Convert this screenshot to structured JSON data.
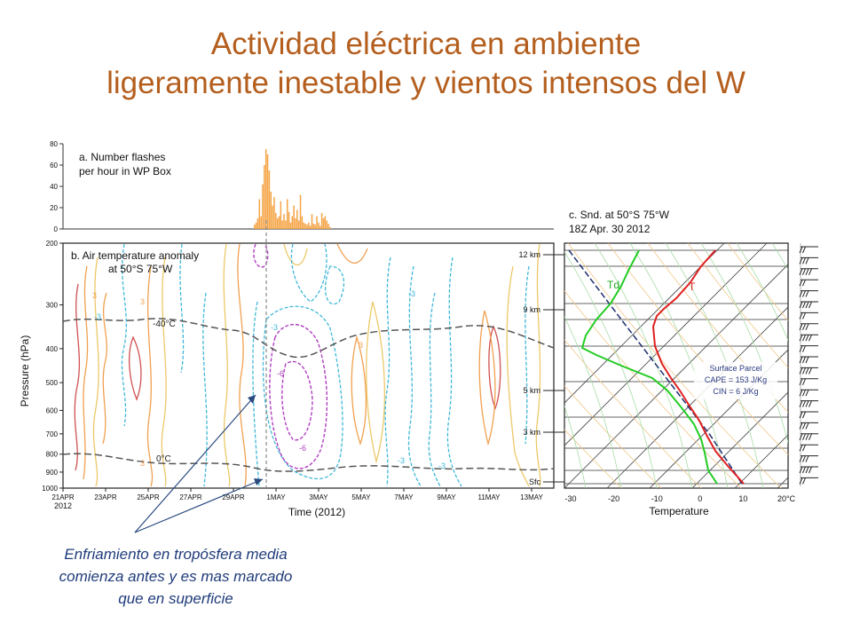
{
  "slide": {
    "title_line1": "Actividad eléctrica en ambiente",
    "title_line2": "ligeramente inestable y vientos intensos del W",
    "annotation_lines": [
      "Enfriamiento en tropósfera media",
      "comienza antes y es mas marcado",
      "que en superficie"
    ]
  },
  "colors": {
    "title": "#b45f1e",
    "annotation": "#1f3b7a",
    "flash_bars": "#f5a445",
    "temperature": "#e02020",
    "dewpoint": "#22cc22"
  },
  "chart_data": [
    {
      "type": "bar",
      "title": "a. Number flashes per hour in WP Box",
      "title_lines": [
        "a. Number flashes",
        "per hour in WP Box"
      ],
      "ylim": [
        0,
        80
      ],
      "yticks": [
        0,
        20,
        40,
        60,
        80
      ],
      "series": [
        {
          "values": [
            4,
            6,
            10,
            28,
            12,
            42,
            60,
            75,
            70,
            55,
            35,
            22,
            30,
            15,
            10,
            12,
            26,
            8,
            14,
            8,
            28,
            16,
            6,
            12,
            22,
            10,
            18,
            8,
            32,
            12,
            6,
            5,
            4,
            6,
            3,
            14,
            5,
            4,
            12,
            6,
            3,
            15,
            10,
            12,
            8,
            5,
            2
          ]
        }
      ],
      "grid": false
    },
    {
      "type": "contour",
      "title": "b. Air temperature anomaly at 50°S 75°W",
      "title_lines": [
        "b. Air temperature anomaly",
        "at 50°S 75°W"
      ],
      "xlabel": "Time (2012)",
      "ylabel": "Pressure (hPa)",
      "x_ticks": [
        "21APR",
        "23APR",
        "25APR",
        "27APR",
        "29APR",
        "1MAY",
        "3MAY",
        "5MAY",
        "7MAY",
        "9MAY",
        "11MAY",
        "13MAY"
      ],
      "x_year": "2012",
      "y_ticks": [
        200,
        300,
        400,
        500,
        600,
        700,
        800,
        900,
        1000
      ],
      "y_scale": "log",
      "height_labels": [
        "12 km",
        "9 km",
        "5 km",
        "3 km",
        "Sfc"
      ],
      "contour_labels": [
        "-3",
        "-3",
        "-3",
        "-3",
        "-3",
        "3",
        "3",
        "3",
        "3",
        "-6",
        "-6"
      ],
      "isotherm_labels": [
        "-40°C",
        "0°C"
      ]
    },
    {
      "type": "line",
      "title": "c. Snd. at 50°S 75°W 18Z Apr. 30 2012",
      "title_lines": [
        "c. Snd. at 50°S 75°W",
        "18Z Apr. 30 2012"
      ],
      "xlabel": "Temperature",
      "xticks": [
        "-30",
        "-20",
        "-10",
        "0",
        "10",
        "20°C"
      ],
      "series": [
        {
          "name": "T"
        },
        {
          "name": "Td"
        }
      ],
      "parcel_box": [
        "Surface Parcel",
        "CAPE = 153 J/Kg",
        "CIN = 6 J/Kg"
      ]
    }
  ]
}
